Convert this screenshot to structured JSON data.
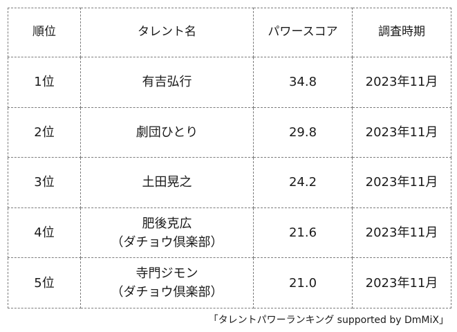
{
  "table": {
    "headers": {
      "rank": "順位",
      "name": "タレント名",
      "score": "パワースコア",
      "period": "調査時期"
    },
    "rows": [
      {
        "rank": "1位",
        "name_line1": "有吉弘行",
        "name_line2": "",
        "score": "34.8",
        "period": "2023年11月"
      },
      {
        "rank": "2位",
        "name_line1": "劇団ひとり",
        "name_line2": "",
        "score": "29.8",
        "period": "2023年11月"
      },
      {
        "rank": "3位",
        "name_line1": "土田晃之",
        "name_line2": "",
        "score": "24.2",
        "period": "2023年11月"
      },
      {
        "rank": "4位",
        "name_line1": "肥後克広",
        "name_line2": "（ダチョウ倶楽部）",
        "score": "21.6",
        "period": "2023年11月"
      },
      {
        "rank": "5位",
        "name_line1": "寺門ジモン",
        "name_line2": "（ダチョウ倶楽部）",
        "score": "21.0",
        "period": "2023年11月"
      }
    ]
  },
  "source_note": "「タレントパワーランキング supported by DmMiX」"
}
